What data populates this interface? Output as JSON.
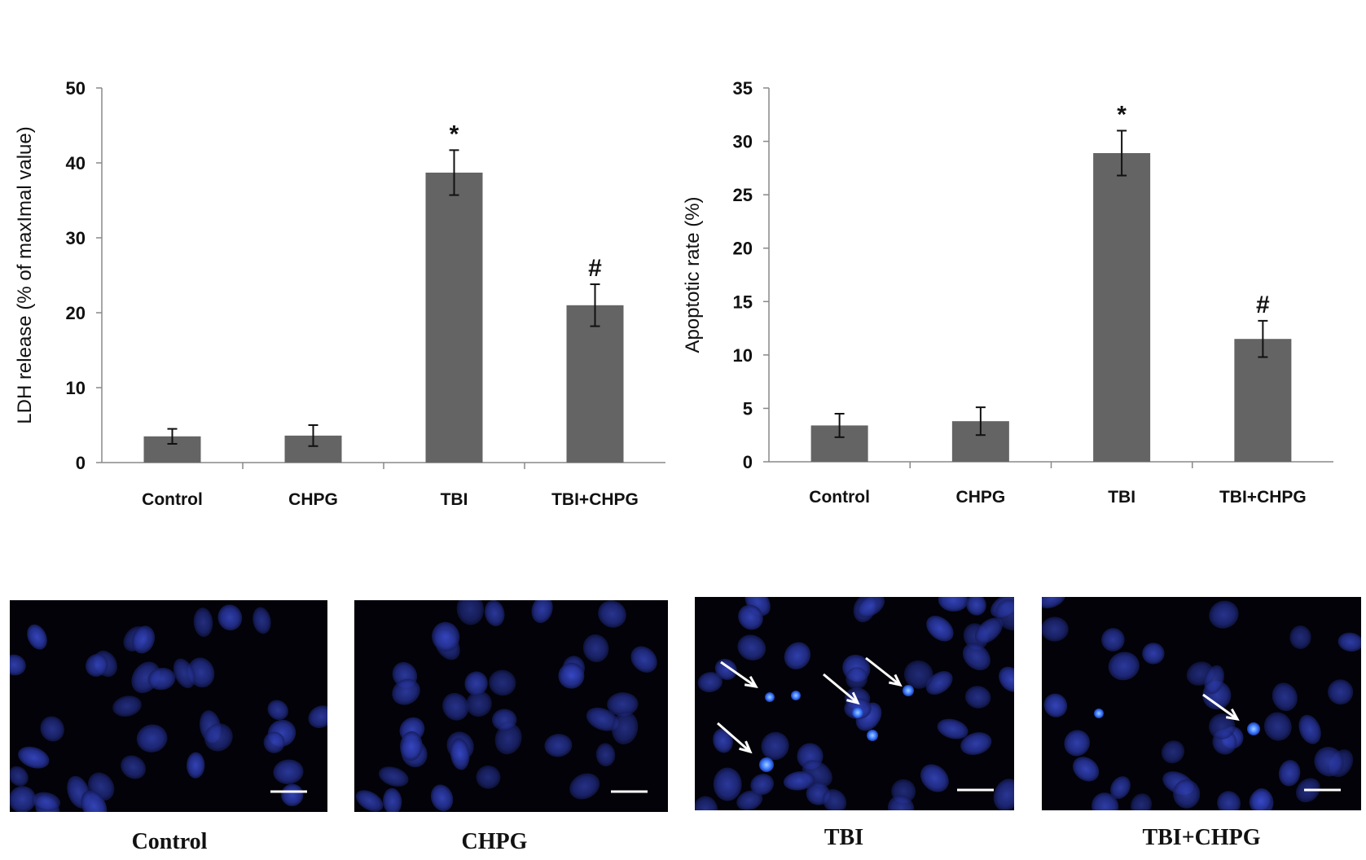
{
  "chart_data": [
    {
      "type": "bar",
      "categories": [
        "Control",
        "CHPG",
        "TBI",
        "TBI+CHPG"
      ],
      "values": [
        3.5,
        3.6,
        38.7,
        21.0
      ],
      "errors": [
        1.0,
        1.4,
        3.0,
        2.8
      ],
      "annotations": [
        "",
        "",
        "*",
        "#"
      ],
      "ylabel": "LDH release (% of maxImal value)",
      "ylim": [
        0,
        50
      ],
      "yticks": [
        "0",
        "10",
        "20",
        "30",
        "40",
        "50"
      ],
      "bar_color": "#646464",
      "grid": false
    },
    {
      "type": "bar",
      "categories": [
        "Control",
        "CHPG",
        "TBI",
        "TBI+CHPG"
      ],
      "values": [
        3.4,
        3.8,
        28.9,
        11.5
      ],
      "errors": [
        1.1,
        1.3,
        2.1,
        1.7
      ],
      "annotations": [
        "",
        "",
        "*",
        "#"
      ],
      "ylabel": "Apoptotic rate (%)",
      "ylim": [
        0,
        35
      ],
      "yticks": [
        "0",
        "5",
        "10",
        "15",
        "20",
        "25",
        "30",
        "35"
      ],
      "bar_color": "#646464",
      "grid": false
    }
  ],
  "micrographs": [
    {
      "caption": "Control",
      "apoptotic_arrows": 0
    },
    {
      "caption": "CHPG",
      "apoptotic_arrows": 0
    },
    {
      "caption": "TBI",
      "apoptotic_arrows": 4
    },
    {
      "caption": "TBI+CHPG",
      "apoptotic_arrows": 1
    }
  ],
  "colors": {
    "nucleus": "#2a3aa8",
    "bright_nucleus": "#3f7cff",
    "panel_background": "#020208",
    "arrow": "#ffffff"
  }
}
